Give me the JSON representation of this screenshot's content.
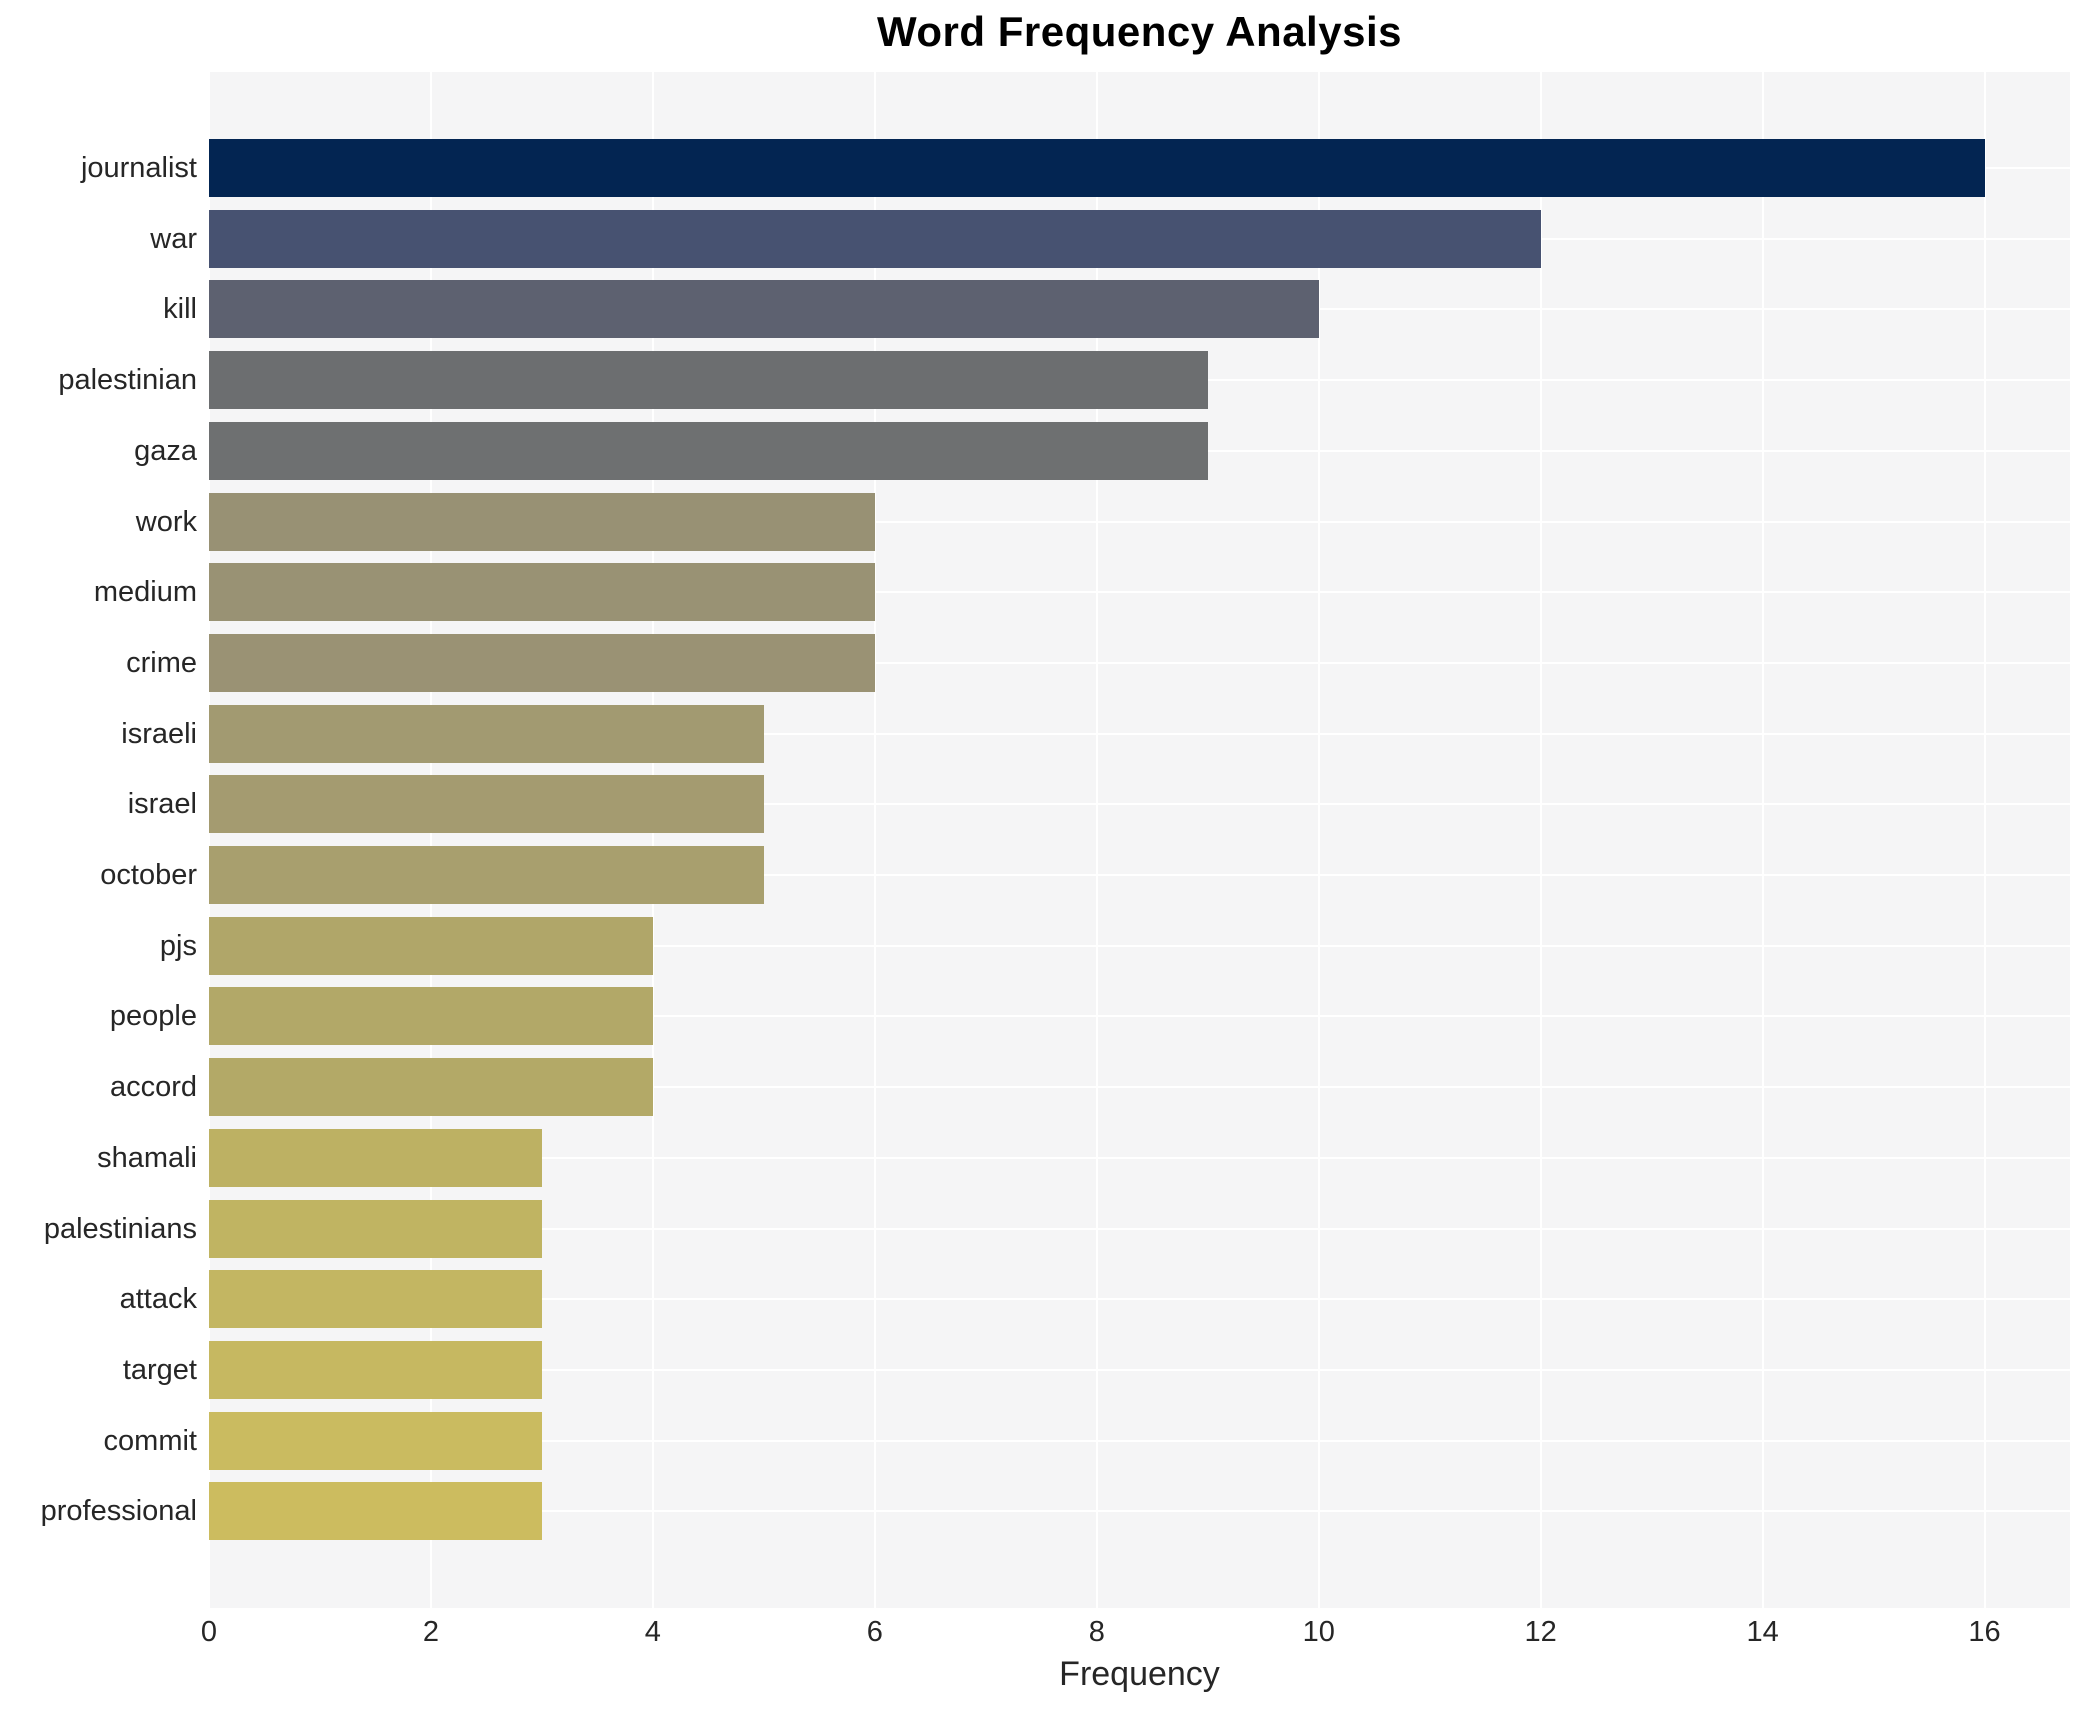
{
  "title": "Word Frequency Analysis",
  "chart_data": {
    "type": "bar",
    "orientation": "horizontal",
    "title": "Word Frequency Analysis",
    "xlabel": "Frequency",
    "ylabel": "",
    "xlim": [
      0,
      16.77
    ],
    "x_ticks": [
      0,
      2,
      4,
      6,
      8,
      10,
      12,
      14,
      16
    ],
    "grid": true,
    "legend": "none",
    "plot_bg_color": "#f5f5f6",
    "grid_color": "#ffffff",
    "text_color": "#262626",
    "categories": [
      "journalist",
      "war",
      "kill",
      "palestinian",
      "gaza",
      "work",
      "medium",
      "crime",
      "israeli",
      "israel",
      "october",
      "pjs",
      "people",
      "accord",
      "shamali",
      "palestinians",
      "attack",
      "target",
      "commit",
      "professional"
    ],
    "values": [
      16,
      12,
      10,
      9,
      9,
      6,
      6,
      6,
      5,
      5,
      5,
      4,
      4,
      4,
      3,
      3,
      3,
      3,
      3,
      3
    ],
    "bar_colors": [
      "#032552",
      "#475271",
      "#5d6170",
      "#6c6e70",
      "#6e7071",
      "#989174",
      "#999274",
      "#9a9274",
      "#a29a71",
      "#a49b70",
      "#a89f6e",
      "#b0a669",
      "#b2a868",
      "#b3a967",
      "#bdb163",
      "#c0b462",
      "#c3b662",
      "#c6b861",
      "#cabb60",
      "#ccbc5f"
    ]
  }
}
